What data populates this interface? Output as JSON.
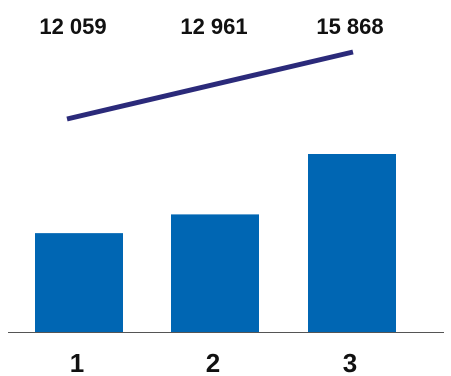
{
  "chart_data": {
    "type": "bar",
    "categories": [
      "1",
      "2",
      "3"
    ],
    "values": [
      12059,
      12961,
      15868
    ],
    "value_labels": [
      "12 059",
      "12 961",
      "15 868"
    ],
    "title": "",
    "xlabel": "",
    "ylabel": "",
    "grid": false,
    "legend": "none",
    "colors": {
      "bar": "#0066b3",
      "trend_line": "#2b2a7a",
      "axis": "#555555",
      "text": "#111111"
    }
  }
}
